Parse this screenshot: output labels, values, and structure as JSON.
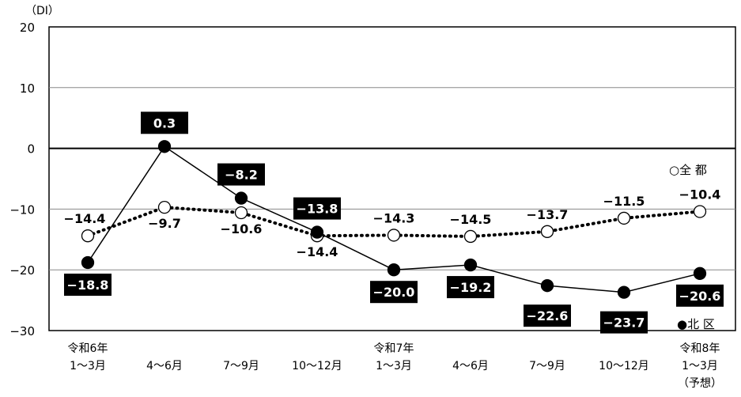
{
  "chart_data": {
    "type": "line",
    "ylabel": "（DI）",
    "ylim": [
      -30,
      20
    ],
    "yticks": [
      20,
      10,
      0,
      -10,
      -20,
      -30
    ],
    "ytick_labels": [
      "20",
      "10",
      "0",
      "−10",
      "−20",
      "−30"
    ],
    "grid": true,
    "categories": [
      [
        "令和6年",
        "1～3月"
      ],
      [
        "",
        "4～6月"
      ],
      [
        "",
        "7～9月"
      ],
      [
        "",
        "10～12月"
      ],
      [
        "令和7年",
        "1～3月"
      ],
      [
        "",
        "4～6月"
      ],
      [
        "",
        "7～9月"
      ],
      [
        "",
        "10～12月"
      ],
      [
        "令和8年",
        "1～3月",
        "（予想）"
      ]
    ],
    "series": [
      {
        "name": "全 都",
        "legend_label": "○全 都",
        "style": "dotted",
        "marker": "open-circle",
        "values": [
          -14.4,
          -9.7,
          -10.6,
          -14.4,
          -14.3,
          -14.5,
          -13.7,
          -11.5,
          -10.4
        ],
        "labels": [
          "−14.4",
          "−9.7",
          "−10.6",
          "−14.4",
          "−14.3",
          "−14.5",
          "−13.7",
          "−11.5",
          "−10.4"
        ]
      },
      {
        "name": "北 区",
        "legend_label": "●北 区",
        "style": "solid",
        "marker": "filled-circle",
        "values": [
          -18.8,
          0.3,
          -8.2,
          -13.8,
          -20.0,
          -19.2,
          -22.6,
          -23.7,
          -20.6
        ],
        "labels": [
          "−18.8",
          "0.3",
          "−8.2",
          "−13.8",
          "−20.0",
          "−19.2",
          "−22.6",
          "−23.7",
          "−20.6"
        ]
      }
    ],
    "colors": {
      "line": "#000000",
      "grid": "#888888",
      "label_box": "#000000",
      "label_box_text": "#ffffff"
    }
  }
}
